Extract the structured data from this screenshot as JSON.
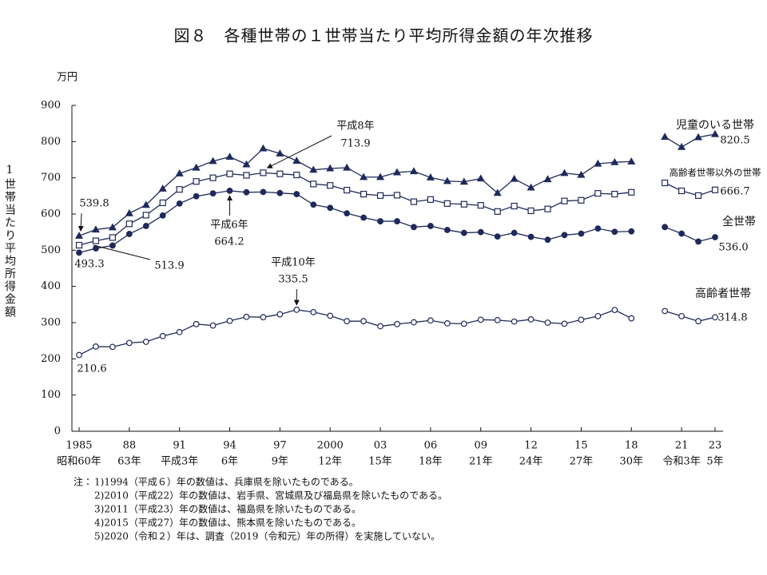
{
  "chart_data": {
    "type": "line",
    "title": "図８　各種世帯の１世帯当たり平均所得金額の年次推移",
    "y_unit": "万円",
    "y_label": "1世帯当たり平均所得金額",
    "x": [
      1985,
      1986,
      1987,
      1988,
      1989,
      1990,
      1991,
      1992,
      1993,
      1994,
      1995,
      1996,
      1997,
      1998,
      1999,
      2000,
      2001,
      2002,
      2003,
      2004,
      2005,
      2006,
      2007,
      2008,
      2009,
      2010,
      2011,
      2012,
      2013,
      2014,
      2015,
      2016,
      2017,
      2018,
      2019,
      2020,
      2021,
      2022,
      2023
    ],
    "xlim": [
      1985,
      2023
    ],
    "xticks": [
      {
        "value": 1985,
        "label": "1985"
      },
      {
        "value": 1988,
        "label": "88"
      },
      {
        "value": 1991,
        "label": "91"
      },
      {
        "value": 1994,
        "label": "94"
      },
      {
        "value": 1997,
        "label": "97"
      },
      {
        "value": 2000,
        "label": "2000"
      },
      {
        "value": 2003,
        "label": "03"
      },
      {
        "value": 2006,
        "label": "06"
      },
      {
        "value": 2009,
        "label": "09"
      },
      {
        "value": 2012,
        "label": "12"
      },
      {
        "value": 2015,
        "label": "15"
      },
      {
        "value": 2018,
        "label": "18"
      },
      {
        "value": 2021,
        "label": "21"
      },
      {
        "value": 2023,
        "label": "23"
      }
    ],
    "xtick_eras": [
      "昭和60年",
      "63年",
      "平成3年",
      "6年",
      "9年",
      "12年",
      "15年",
      "18年",
      "21年",
      "24年",
      "27年",
      "30年",
      "令和3年",
      "5年"
    ],
    "ylim": [
      0,
      900
    ],
    "yticks": [
      0,
      100,
      200,
      300,
      400,
      500,
      600,
      700,
      800,
      900
    ],
    "grid": false,
    "series": [
      {
        "name": "児童のいる世帯",
        "color": "#1f2a5a",
        "marker": "triangle",
        "filled": true,
        "values": [
          539.8,
          557,
          563,
          602,
          625,
          670,
          712,
          728,
          746,
          758,
          737,
          781,
          767,
          747,
          722,
          726,
          728,
          702,
          702,
          715,
          718,
          701,
          691,
          689,
          698,
          658,
          697,
          673,
          696,
          713,
          708,
          739,
          743,
          745,
          null,
          813,
          785,
          812,
          820.5
        ],
        "value_labels": [
          "539.8",
          null,
          null,
          null,
          null,
          null,
          null,
          null,
          null,
          null,
          null,
          null,
          null,
          null,
          null,
          null,
          null,
          null,
          null,
          null,
          null,
          null,
          null,
          null,
          null,
          null,
          null,
          null,
          null,
          null,
          null,
          null,
          null,
          null,
          null,
          null,
          null,
          null,
          "820.5"
        ],
        "point_notes": [
          null,
          null,
          null,
          null,
          null,
          null,
          null,
          null,
          null,
          null,
          null,
          null,
          null,
          null,
          null,
          null,
          null,
          null,
          null,
          null,
          null,
          null,
          null,
          null,
          null,
          null,
          null,
          null,
          null,
          null,
          null,
          null,
          null,
          null,
          null,
          null,
          null,
          null,
          null
        ]
      },
      {
        "name": "高齢者世帯以外の世帯",
        "color": "#1f2a5a",
        "marker": "square",
        "filled": false,
        "values": [
          513.9,
          526,
          535,
          573,
          597,
          631,
          668,
          690,
          700,
          711,
          707,
          713.9,
          711,
          708,
          683,
          679,
          666,
          655,
          651,
          652,
          634,
          640,
          629,
          627,
          624,
          607,
          622,
          609,
          614,
          636,
          638,
          657,
          655,
          660,
          null,
          686,
          664,
          651,
          666.7
        ],
        "value_labels": [
          "513.9",
          null,
          null,
          null,
          null,
          null,
          null,
          null,
          null,
          null,
          null,
          "713.9",
          null,
          null,
          null,
          null,
          null,
          null,
          null,
          null,
          null,
          null,
          null,
          null,
          null,
          null,
          null,
          null,
          null,
          null,
          null,
          null,
          null,
          null,
          null,
          null,
          null,
          null,
          "666.7"
        ],
        "point_notes": [
          null,
          null,
          null,
          null,
          null,
          null,
          null,
          null,
          null,
          null,
          null,
          "平成8年",
          null,
          null,
          null,
          null,
          null,
          null,
          null,
          null,
          null,
          null,
          null,
          null,
          null,
          null,
          null,
          null,
          null,
          null,
          null,
          null,
          null,
          null,
          null,
          null,
          null,
          null,
          null
        ]
      },
      {
        "name": "全世帯",
        "color": "#1f2a5a",
        "marker": "circle",
        "filled": true,
        "values": [
          493.3,
          505,
          513,
          545,
          567,
          596,
          629,
          649,
          657,
          664.2,
          660,
          661,
          658,
          655,
          626,
          617,
          602,
          590,
          580,
          580,
          564,
          567,
          556,
          548,
          550,
          538,
          548,
          537,
          529,
          542,
          546,
          560,
          551,
          552,
          null,
          564,
          546,
          524,
          536.0
        ],
        "value_labels": [
          "493.3",
          null,
          null,
          null,
          null,
          null,
          null,
          null,
          null,
          "664.2",
          null,
          null,
          null,
          null,
          null,
          null,
          null,
          null,
          null,
          null,
          null,
          null,
          null,
          null,
          null,
          null,
          null,
          null,
          null,
          null,
          null,
          null,
          null,
          null,
          null,
          null,
          null,
          null,
          "536.0"
        ],
        "point_notes": [
          null,
          null,
          null,
          null,
          null,
          null,
          null,
          null,
          null,
          "平成6年",
          null,
          null,
          null,
          null,
          null,
          null,
          null,
          null,
          null,
          null,
          null,
          null,
          null,
          null,
          null,
          null,
          null,
          null,
          null,
          null,
          null,
          null,
          null,
          null,
          null,
          null,
          null,
          null,
          null
        ]
      },
      {
        "name": "高齢者世帯",
        "color": "#1f2a5a",
        "marker": "circle",
        "filled": false,
        "values": [
          210.6,
          234,
          233,
          244,
          247,
          263,
          274,
          296,
          292,
          305,
          316,
          315,
          323,
          335.5,
          329,
          319,
          304,
          304,
          290,
          296,
          301,
          306,
          298,
          297,
          308,
          307,
          303,
          309,
          300,
          297,
          308,
          318,
          335,
          312,
          null,
          332,
          318,
          304,
          314.8
        ],
        "value_labels": [
          "210.6",
          null,
          null,
          null,
          null,
          null,
          null,
          null,
          null,
          null,
          null,
          null,
          null,
          "335.5",
          null,
          null,
          null,
          null,
          null,
          null,
          null,
          null,
          null,
          null,
          null,
          null,
          null,
          null,
          null,
          null,
          null,
          null,
          null,
          null,
          null,
          null,
          null,
          null,
          "314.8"
        ],
        "point_notes": [
          null,
          null,
          null,
          null,
          null,
          null,
          null,
          null,
          null,
          null,
          null,
          null,
          null,
          "平成10年",
          null,
          null,
          null,
          null,
          null,
          null,
          null,
          null,
          null,
          null,
          null,
          null,
          null,
          null,
          null,
          null,
          null,
          null,
          null,
          null,
          null,
          null,
          null,
          null,
          null
        ]
      }
    ],
    "note_prefix": "注：",
    "notes": [
      "1)1994（平成６）年の数値は、兵庫県を除いたものである。",
      "2)2010（平成22）年の数値は、岩手県、宮城県及び福島県を除いたものである。",
      "3)2011（平成23）年の数値は、福島県を除いたものである。",
      "4)2015（平成27）年の数値は、熊本県を除いたものである。",
      "5)2020（令和２）年は、調査（2019（令和元）年の所得）を実施していない。"
    ]
  }
}
